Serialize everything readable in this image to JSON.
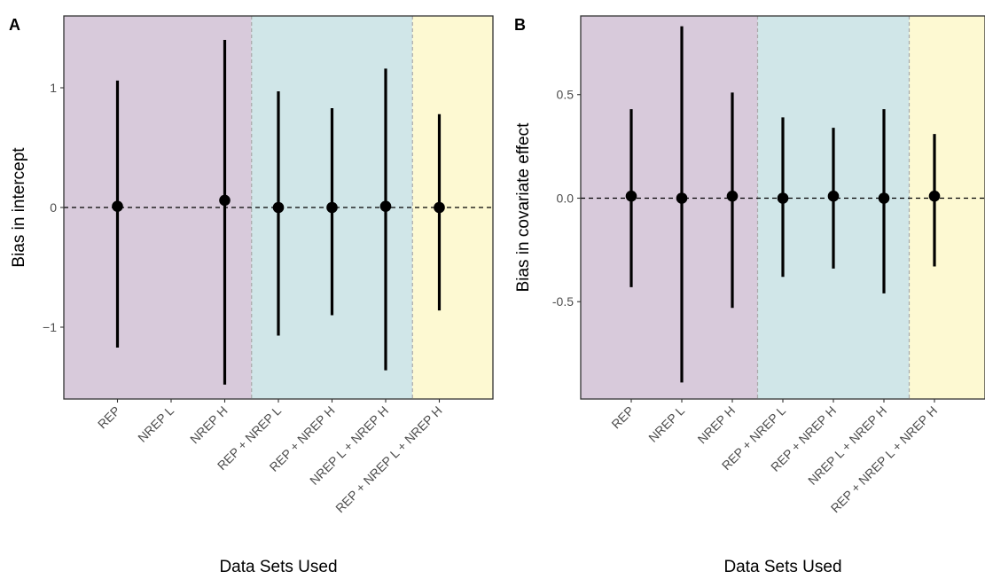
{
  "chart_data": [
    {
      "panel_label": "A",
      "type": "errorbar",
      "xlabel": "Data Sets Used",
      "ylabel": "Bias in intercept",
      "ylim": [
        -1.6,
        1.6
      ],
      "yticks": [
        -1,
        0,
        1
      ],
      "ytick_labels": [
        "−1",
        "0",
        "1"
      ],
      "categories": [
        "REP",
        "NREP L",
        "NREP H",
        "REP + NREP L",
        "REP + NREP H",
        "NREP L + NREP H",
        "REP + NREP L + NREP H"
      ],
      "points": [
        {
          "category": "REP",
          "estimate": 0.01,
          "lower": -1.17,
          "upper": 1.06
        },
        {
          "category": "NREP L",
          "estimate": null,
          "lower": null,
          "upper": null
        },
        {
          "category": "NREP H",
          "estimate": 0.06,
          "lower": -1.48,
          "upper": 1.4
        },
        {
          "category": "REP + NREP L",
          "estimate": 0.0,
          "lower": -1.07,
          "upper": 0.97
        },
        {
          "category": "REP + NREP H",
          "estimate": 0.0,
          "lower": -0.9,
          "upper": 0.83
        },
        {
          "category": "NREP L + NREP H",
          "estimate": 0.01,
          "lower": -1.36,
          "upper": 1.16
        },
        {
          "category": "REP + NREP L + NREP H",
          "estimate": 0.0,
          "lower": -0.86,
          "upper": 0.78
        }
      ],
      "reference_line": 0,
      "bands": [
        {
          "from": "start",
          "to": "NREP H",
          "color": "#d8cadb"
        },
        {
          "from": "REP + NREP L",
          "to": "NREP L + NREP H",
          "color": "#d0e6e8"
        },
        {
          "from": "REP + NREP L + NREP H",
          "to": "end",
          "color": "#fdf9d2"
        }
      ],
      "grid": false
    },
    {
      "panel_label": "B",
      "type": "errorbar",
      "xlabel": "Data Sets Used",
      "ylabel": "Bias in covariate effect",
      "ylim": [
        -0.97,
        0.88
      ],
      "yticks": [
        -0.5,
        0.0,
        0.5
      ],
      "ytick_labels": [
        "-0.5",
        "0.0",
        "0.5"
      ],
      "categories": [
        "REP",
        "NREP L",
        "NREP H",
        "REP + NREP L",
        "REP + NREP H",
        "NREP L + NREP H",
        "REP + NREP L + NREP H"
      ],
      "points": [
        {
          "category": "REP",
          "estimate": 0.01,
          "lower": -0.43,
          "upper": 0.43
        },
        {
          "category": "NREP L",
          "estimate": 0.0,
          "lower": -0.89,
          "upper": 0.83
        },
        {
          "category": "NREP H",
          "estimate": 0.01,
          "lower": -0.53,
          "upper": 0.51
        },
        {
          "category": "REP + NREP L",
          "estimate": 0.0,
          "lower": -0.38,
          "upper": 0.39
        },
        {
          "category": "REP + NREP H",
          "estimate": 0.01,
          "lower": -0.34,
          "upper": 0.34
        },
        {
          "category": "NREP L + NREP H",
          "estimate": 0.0,
          "lower": -0.46,
          "upper": 0.43
        },
        {
          "category": "REP + NREP L + NREP H",
          "estimate": 0.01,
          "lower": -0.33,
          "upper": 0.31
        }
      ],
      "reference_line": 0,
      "bands": [
        {
          "from": "start",
          "to": "NREP H",
          "color": "#d8cadb"
        },
        {
          "from": "REP + NREP L",
          "to": "NREP L + NREP H",
          "color": "#d0e6e8"
        },
        {
          "from": "REP + NREP L + NREP H",
          "to": "end",
          "color": "#fdf9d2"
        }
      ],
      "grid": false
    }
  ]
}
